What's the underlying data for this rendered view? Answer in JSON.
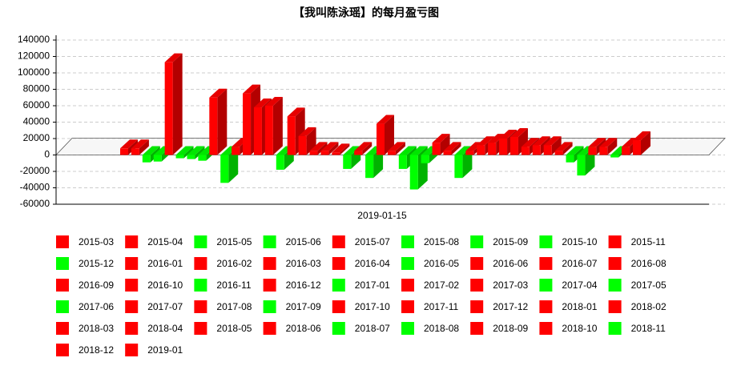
{
  "chart_data": {
    "type": "bar3d",
    "title": "【我叫陈泳瑶】的每月盈亏图",
    "categories": [
      "2019-01-15"
    ],
    "ylim": [
      -60000,
      140000
    ],
    "yticks": [
      -60000,
      -40000,
      -20000,
      0,
      20000,
      40000,
      60000,
      80000,
      100000,
      120000,
      140000
    ],
    "grid": true,
    "series": [
      {
        "name": "2015-03",
        "color": "#ff0000",
        "values": [
          8000
        ]
      },
      {
        "name": "2015-04",
        "color": "#ff0000",
        "values": [
          8000
        ]
      },
      {
        "name": "2015-05",
        "color": "#00ff00",
        "values": [
          -9000
        ]
      },
      {
        "name": "2015-06",
        "color": "#00ff00",
        "values": [
          -8000
        ]
      },
      {
        "name": "2015-07",
        "color": "#ff0000",
        "values": [
          113000
        ]
      },
      {
        "name": "2015-08",
        "color": "#00ff00",
        "values": [
          -4000
        ]
      },
      {
        "name": "2015-09",
        "color": "#00ff00",
        "values": [
          -5000
        ]
      },
      {
        "name": "2015-10",
        "color": "#00ff00",
        "values": [
          -7000
        ]
      },
      {
        "name": "2015-11",
        "color": "#ff0000",
        "values": [
          70000
        ]
      },
      {
        "name": "2015-12",
        "color": "#00ff00",
        "values": [
          -34000
        ]
      },
      {
        "name": "2016-01",
        "color": "#ff0000",
        "values": [
          10000
        ]
      },
      {
        "name": "2016-02",
        "color": "#ff0000",
        "values": [
          75000
        ]
      },
      {
        "name": "2016-03",
        "color": "#ff0000",
        "values": [
          58000
        ]
      },
      {
        "name": "2016-04",
        "color": "#ff0000",
        "values": [
          60000
        ]
      },
      {
        "name": "2016-05",
        "color": "#00ff00",
        "values": [
          -18000
        ]
      },
      {
        "name": "2016-06",
        "color": "#ff0000",
        "values": [
          47000
        ]
      },
      {
        "name": "2016-07",
        "color": "#ff0000",
        "values": [
          23000
        ]
      },
      {
        "name": "2016-08",
        "color": "#ff0000",
        "values": [
          5000
        ]
      },
      {
        "name": "2016-09",
        "color": "#ff0000",
        "values": [
          5000
        ]
      },
      {
        "name": "2016-10",
        "color": "#ff0000",
        "values": [
          3000
        ]
      },
      {
        "name": "2016-11",
        "color": "#00ff00",
        "values": [
          -17000
        ]
      },
      {
        "name": "2016-12",
        "color": "#ff0000",
        "values": [
          5000
        ]
      },
      {
        "name": "2017-01",
        "color": "#00ff00",
        "values": [
          -28000
        ]
      },
      {
        "name": "2017-02",
        "color": "#ff0000",
        "values": [
          38000
        ]
      },
      {
        "name": "2017-03",
        "color": "#ff0000",
        "values": [
          5000
        ]
      },
      {
        "name": "2017-04",
        "color": "#00ff00",
        "values": [
          -17000
        ]
      },
      {
        "name": "2017-05",
        "color": "#00ff00",
        "values": [
          -42000
        ]
      },
      {
        "name": "2017-06",
        "color": "#00ff00",
        "values": [
          -10000
        ]
      },
      {
        "name": "2017-07",
        "color": "#ff0000",
        "values": [
          15000
        ]
      },
      {
        "name": "2017-08",
        "color": "#ff0000",
        "values": [
          5000
        ]
      },
      {
        "name": "2017-09",
        "color": "#00ff00",
        "values": [
          -28000
        ]
      },
      {
        "name": "2017-10",
        "color": "#ff0000",
        "values": [
          5000
        ]
      },
      {
        "name": "2017-11",
        "color": "#ff0000",
        "values": [
          12000
        ]
      },
      {
        "name": "2017-12",
        "color": "#ff0000",
        "values": [
          15000
        ]
      },
      {
        "name": "2018-01",
        "color": "#ff0000",
        "values": [
          20000
        ]
      },
      {
        "name": "2018-02",
        "color": "#ff0000",
        "values": [
          22000
        ]
      },
      {
        "name": "2018-03",
        "color": "#ff0000",
        "values": [
          10000
        ]
      },
      {
        "name": "2018-04",
        "color": "#ff0000",
        "values": [
          12000
        ]
      },
      {
        "name": "2018-05",
        "color": "#ff0000",
        "values": [
          12000
        ]
      },
      {
        "name": "2018-06",
        "color": "#ff0000",
        "values": [
          5000
        ]
      },
      {
        "name": "2018-07",
        "color": "#00ff00",
        "values": [
          -9000
        ]
      },
      {
        "name": "2018-08",
        "color": "#00ff00",
        "values": [
          -25000
        ]
      },
      {
        "name": "2018-09",
        "color": "#ff0000",
        "values": [
          10000
        ]
      },
      {
        "name": "2018-10",
        "color": "#ff0000",
        "values": [
          10000
        ]
      },
      {
        "name": "2018-11",
        "color": "#00ff00",
        "values": [
          -3000
        ]
      },
      {
        "name": "2018-12",
        "color": "#ff0000",
        "values": [
          10000
        ]
      },
      {
        "name": "2019-01",
        "color": "#ff0000",
        "values": [
          18000
        ]
      }
    ]
  }
}
